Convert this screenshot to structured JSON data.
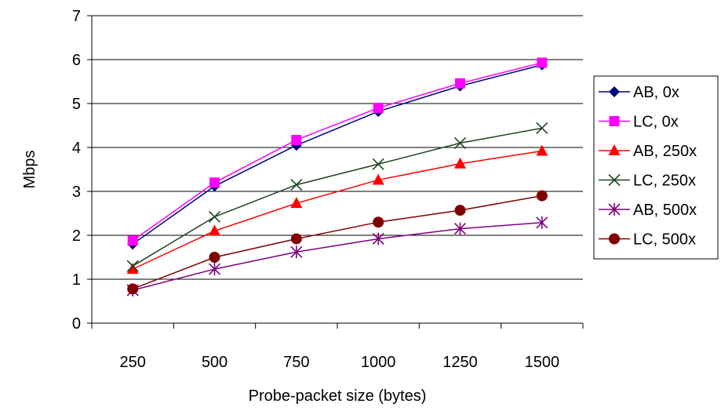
{
  "chart_data": {
    "type": "line",
    "title": "",
    "xlabel": "Probe-packet size (bytes)",
    "ylabel": "Mbps",
    "categories": [
      "250",
      "500",
      "750",
      "1000",
      "1250",
      "1500"
    ],
    "ylim": [
      0,
      7
    ],
    "yticks": [
      "0",
      "1",
      "2",
      "3",
      "4",
      "5",
      "6",
      "7"
    ],
    "grid": "horizontal",
    "legend_position": "right",
    "series": [
      {
        "name": "AB, 0x",
        "color": "#000080",
        "marker": "diamond",
        "values": [
          1.8,
          3.12,
          4.05,
          4.82,
          5.4,
          5.88
        ]
      },
      {
        "name": "LC, 0x",
        "color": "#ff00ff",
        "marker": "square",
        "values": [
          1.88,
          3.2,
          4.17,
          4.9,
          5.46,
          5.93
        ]
      },
      {
        "name": "AB, 250x",
        "color": "#ff0000",
        "marker": "triangle",
        "values": [
          1.23,
          2.1,
          2.73,
          3.26,
          3.63,
          3.92
        ]
      },
      {
        "name": "LC, 250x",
        "color": "#1e4620",
        "marker": "x",
        "values": [
          1.3,
          2.42,
          3.15,
          3.62,
          4.1,
          4.44
        ]
      },
      {
        "name": "AB, 500x",
        "color": "#800080",
        "marker": "asterisk",
        "values": [
          0.75,
          1.23,
          1.62,
          1.92,
          2.15,
          2.29
        ]
      },
      {
        "name": "LC, 500x",
        "color": "#800000",
        "marker": "circle",
        "values": [
          0.78,
          1.5,
          1.92,
          2.3,
          2.57,
          2.9
        ]
      }
    ]
  }
}
